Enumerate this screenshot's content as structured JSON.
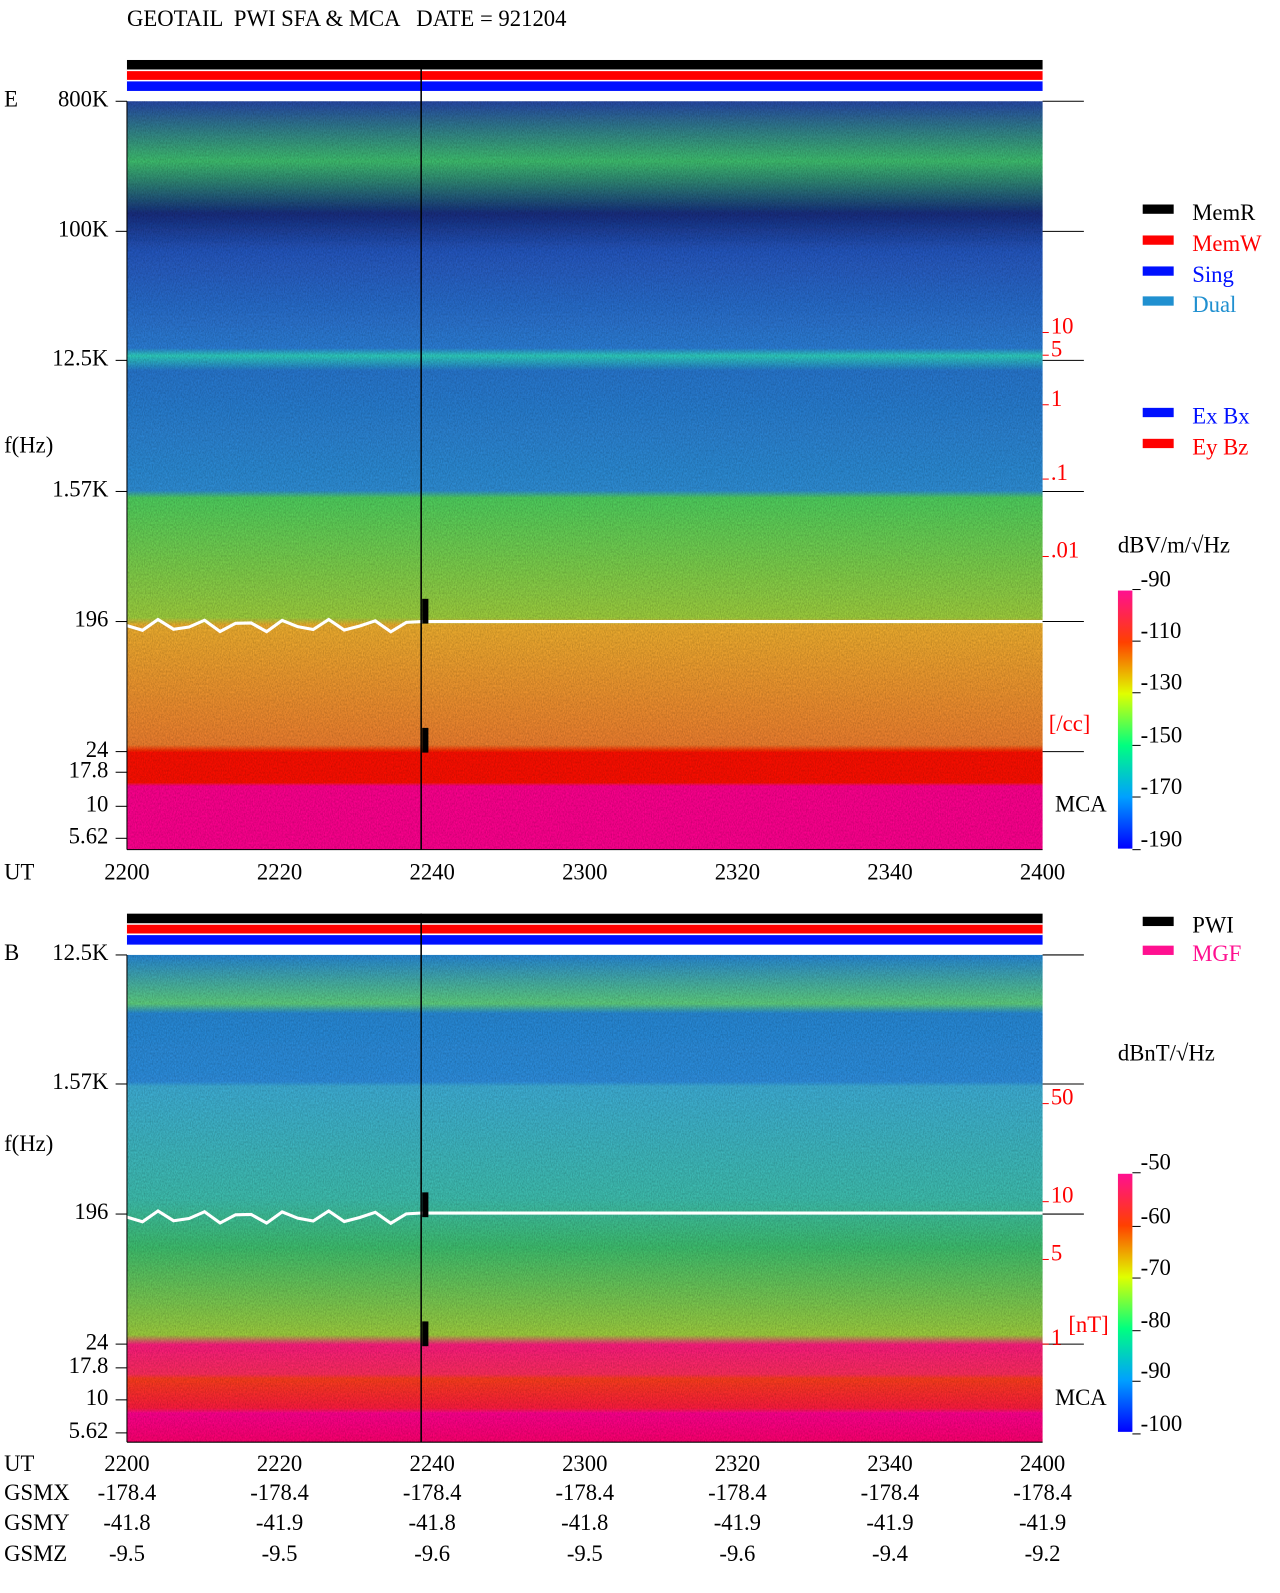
{
  "header": {
    "title": "GEOTAIL  PWI SFA & MCA   DATE = 921204"
  },
  "panels": [
    {
      "label": "E",
      "y_axis_label": "f(Hz)",
      "freq_ticks": [
        "800K",
        "100K",
        "12.5K",
        "1.57K",
        "196",
        "24",
        "17.8",
        "10",
        "5.62"
      ],
      "x_axis_label": "UT",
      "time_ticks": [
        "2200",
        "2220",
        "2240",
        "2300",
        "2320",
        "2340",
        "2400"
      ],
      "mca_label": "MCA",
      "density_ticks": [
        "10",
        "5",
        "1",
        ".1",
        ".01"
      ],
      "density_unit": "[/cc]",
      "legend": [
        "MemR",
        "MemW",
        "Sing",
        "Dual",
        "Ex Bx",
        "Ey Bz"
      ],
      "colorbar": {
        "title": "dBV/m/√Hz",
        "ticks": [
          "-90",
          "-110",
          "-130",
          "-150",
          "-170",
          "-190"
        ]
      }
    },
    {
      "label": "B",
      "y_axis_label": "f(Hz)",
      "freq_ticks": [
        "12.5K",
        "1.57K",
        "196",
        "24",
        "17.8",
        "10",
        "5.62"
      ],
      "x_axis_label": "UT",
      "time_ticks": [
        "2200",
        "2220",
        "2240",
        "2300",
        "2320",
        "2340",
        "2400"
      ],
      "mca_label": "MCA",
      "density_ticks": [
        "50",
        "10",
        "5",
        "1"
      ],
      "density_unit": "[nT]",
      "legend": [
        "PWI",
        "MGF"
      ],
      "colorbar": {
        "title": "dBnT/√Hz",
        "ticks": [
          "-50",
          "-60",
          "-70",
          "-80",
          "-90",
          "-100"
        ]
      }
    }
  ],
  "orbit": [
    {
      "name": "GSMX",
      "values": [
        "-178.4",
        "-178.4",
        "-178.4",
        "-178.4",
        "-178.4",
        "-178.4",
        "-178.4"
      ]
    },
    {
      "name": "GSMY",
      "values": [
        "-41.8",
        "-41.9",
        "-41.8",
        "-41.8",
        "-41.9",
        "-41.9",
        "-41.9"
      ]
    },
    {
      "name": "GSMZ",
      "values": [
        "-9.5",
        "-9.5",
        "-9.6",
        "-9.5",
        "-9.6",
        "-9.4",
        "-9.2"
      ]
    }
  ]
}
